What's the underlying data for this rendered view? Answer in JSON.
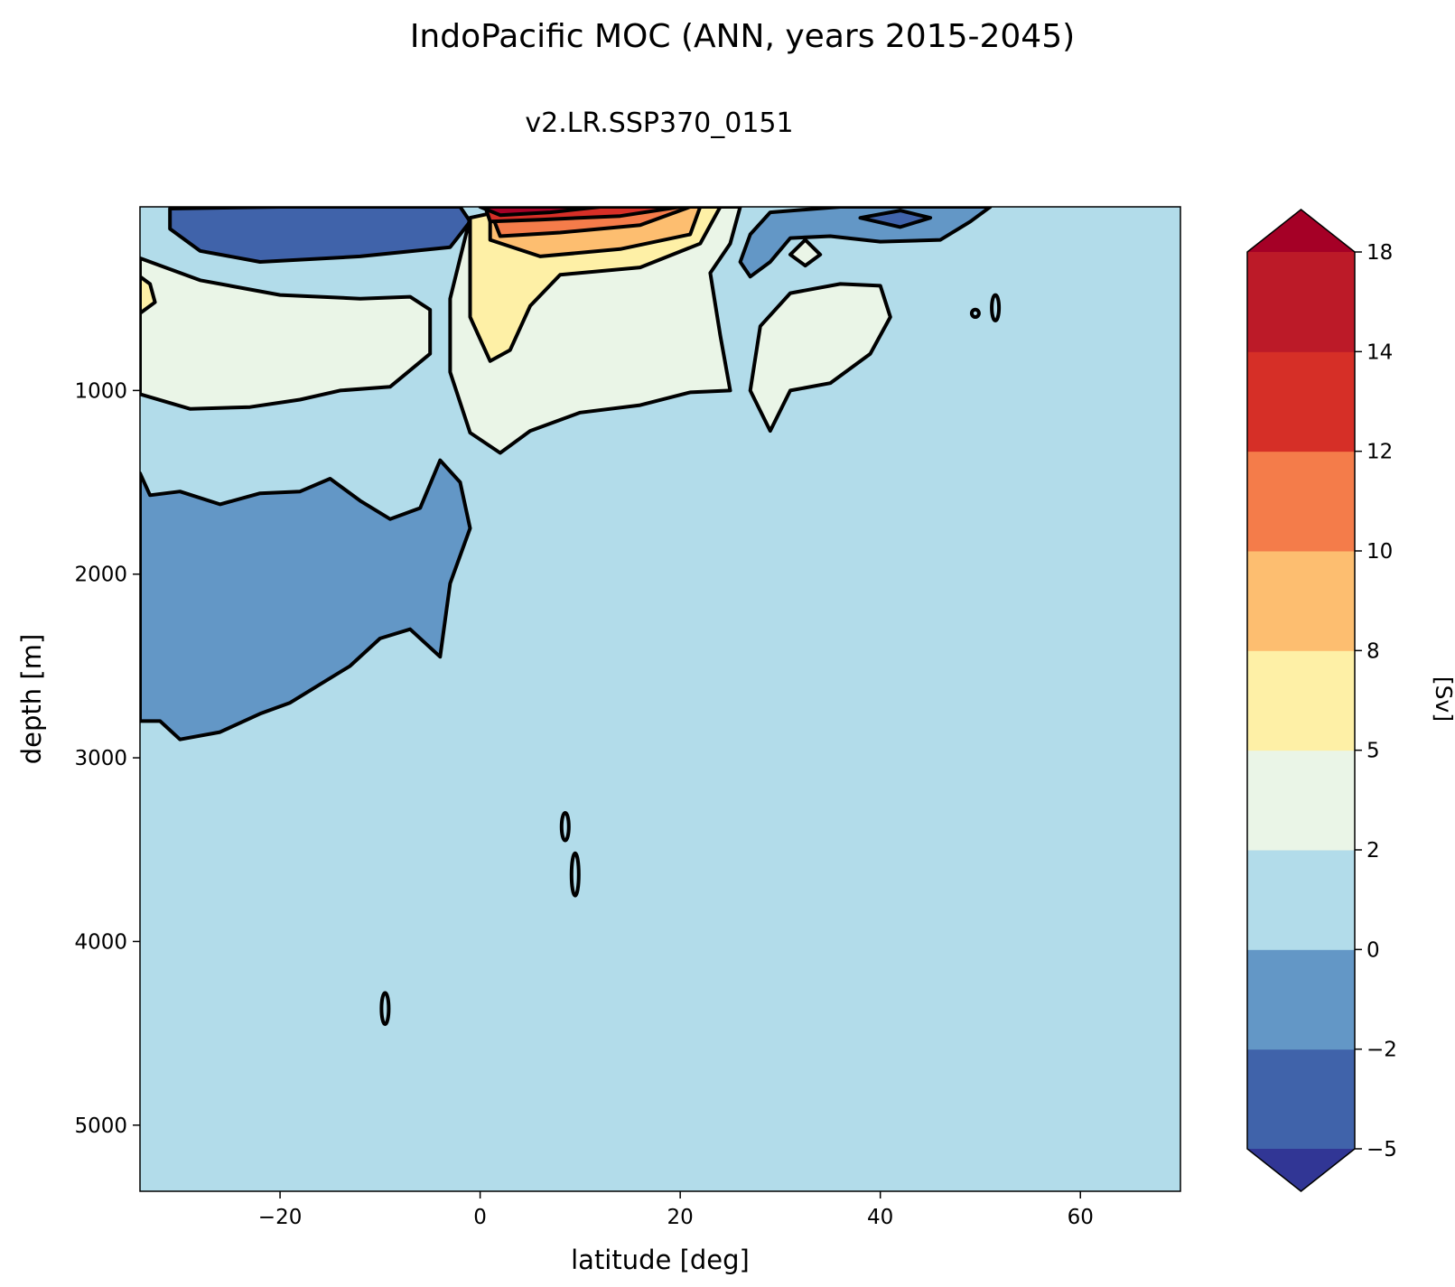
{
  "chart_data": {
    "type": "heatmap",
    "subtype": "filled-contour",
    "title": "IndoPacific MOC (ANN, years 2015-2045)",
    "subtitle": "v2.LR.SSP370_0151",
    "xlabel": "latitude [deg]",
    "ylabel": "depth [m]",
    "xlim": [
      -34,
      70
    ],
    "ylim": [
      5360,
      0
    ],
    "y_inverted": true,
    "grid": false,
    "x_ticks": [
      {
        "value": -20,
        "label": "−20"
      },
      {
        "value": 0,
        "label": "0"
      },
      {
        "value": 20,
        "label": "20"
      },
      {
        "value": 40,
        "label": "40"
      },
      {
        "value": 60,
        "label": "60"
      }
    ],
    "y_ticks": [
      {
        "value": 1000,
        "label": "1000"
      },
      {
        "value": 2000,
        "label": "2000"
      },
      {
        "value": 3000,
        "label": "3000"
      },
      {
        "value": 4000,
        "label": "4000"
      },
      {
        "value": 5000,
        "label": "5000"
      }
    ],
    "colorbar": {
      "label": "[Sv]",
      "placement": "right",
      "extend": "both",
      "levels": [
        -5,
        -2,
        0,
        2,
        5,
        8,
        10,
        12,
        14,
        18
      ],
      "tick_labels": [
        "−5",
        "−2",
        "0",
        "2",
        "5",
        "8",
        "10",
        "12",
        "14",
        "18"
      ],
      "colors": [
        "#4063aa",
        "#6397c6",
        "#b2dcea",
        "#eaf5e7",
        "#fef0a6",
        "#fdbe70",
        "#f47c4a",
        "#d62f27",
        "#bc1a28"
      ],
      "under_color": "#313695",
      "over_color": "#a50026"
    },
    "background_level_color": "#b2dcea",
    "regions": [
      {
        "name": "deep-negative-cell",
        "level_range": [
          -2,
          0
        ],
        "color": "#6397c6",
        "lat": [
          -34,
          0
        ],
        "depth": [
          1300,
          2900
        ],
        "outline": [
          [
            -34,
            1450
          ],
          [
            -33,
            1570
          ],
          [
            -30,
            1550
          ],
          [
            -26,
            1620
          ],
          [
            -22,
            1560
          ],
          [
            -18,
            1550
          ],
          [
            -15,
            1480
          ],
          [
            -12,
            1600
          ],
          [
            -9,
            1700
          ],
          [
            -6,
            1640
          ],
          [
            -4,
            1380
          ],
          [
            -2,
            1500
          ],
          [
            -1,
            1750
          ],
          [
            -3,
            2050
          ],
          [
            -4,
            2450
          ],
          [
            -7,
            2300
          ],
          [
            -10,
            2350
          ],
          [
            -13,
            2500
          ],
          [
            -16,
            2600
          ],
          [
            -19,
            2700
          ],
          [
            -22,
            2760
          ],
          [
            -26,
            2860
          ],
          [
            -30,
            2900
          ],
          [
            -32,
            2800
          ],
          [
            -34,
            2800
          ]
        ]
      },
      {
        "name": "southern-positive-cell",
        "level_range": [
          2,
          5
        ],
        "color": "#eaf5e7",
        "lat": [
          -34,
          -4
        ],
        "depth": [
          280,
          1120
        ],
        "outline": [
          [
            -34,
            280
          ],
          [
            -28,
            400
          ],
          [
            -20,
            480
          ],
          [
            -12,
            500
          ],
          [
            -7,
            490
          ],
          [
            -5,
            560
          ],
          [
            -5,
            800
          ],
          [
            -9,
            980
          ],
          [
            -14,
            1000
          ],
          [
            -18,
            1050
          ],
          [
            -23,
            1090
          ],
          [
            -29,
            1100
          ],
          [
            -34,
            1020
          ]
        ]
      },
      {
        "name": "southern-positive-core",
        "level_range": [
          5,
          8
        ],
        "color": "#fef0a6",
        "lat": [
          -34,
          -32
        ],
        "depth": [
          380,
          580
        ],
        "outline": [
          [
            -34,
            380
          ],
          [
            -33,
            420
          ],
          [
            -32.5,
            520
          ],
          [
            -34,
            580
          ]
        ]
      },
      {
        "name": "surface-negative-core",
        "level_range": [
          "<-5"
        ],
        "color": "#313695",
        "lat": [
          -28,
          -2
        ],
        "depth": [
          0,
          220
        ],
        "outline": [
          [
            -27,
            40
          ],
          [
            -20,
            20
          ],
          [
            -12,
            20
          ],
          [
            -4,
            20
          ],
          [
            -2,
            60
          ],
          [
            -4,
            150
          ],
          [
            -10,
            200
          ],
          [
            -18,
            220
          ],
          [
            -24,
            180
          ],
          [
            -28,
            100
          ]
        ]
      },
      {
        "name": "surface-negative-ring",
        "level_range": [
          -5,
          -2
        ],
        "color": "#4063aa",
        "lat": [
          -31,
          -1
        ],
        "depth": [
          0,
          300
        ],
        "outline": [
          [
            -31,
            10
          ],
          [
            -20,
            0
          ],
          [
            -2,
            0
          ],
          [
            -1,
            80
          ],
          [
            -3,
            220
          ],
          [
            -12,
            270
          ],
          [
            -22,
            300
          ],
          [
            -28,
            240
          ],
          [
            -31,
            120
          ]
        ]
      },
      {
        "name": "northern-positive-cell",
        "level_range": [
          2,
          5
        ],
        "color": "#eaf5e7",
        "lat": [
          -3,
          27
        ],
        "depth": [
          0,
          1340
        ],
        "outline": [
          [
            -1,
            60
          ],
          [
            5,
            0
          ],
          [
            26,
            0
          ],
          [
            25,
            200
          ],
          [
            23,
            360
          ],
          [
            24,
            700
          ],
          [
            25,
            1000
          ],
          [
            21,
            1010
          ],
          [
            16,
            1080
          ],
          [
            10,
            1120
          ],
          [
            5,
            1220
          ],
          [
            2,
            1340
          ],
          [
            -1,
            1230
          ],
          [
            -3,
            900
          ],
          [
            -3,
            500
          ]
        ]
      },
      {
        "name": "northern-positive-core",
        "level_range": [
          5,
          8
        ],
        "color": "#fef0a6",
        "lat": [
          -1,
          24
        ],
        "depth": [
          0,
          840
        ],
        "outline": [
          [
            -1,
            60
          ],
          [
            4,
            0
          ],
          [
            24,
            0
          ],
          [
            22,
            200
          ],
          [
            16,
            330
          ],
          [
            8,
            370
          ],
          [
            5,
            540
          ],
          [
            3,
            780
          ],
          [
            1,
            840
          ],
          [
            -1,
            600
          ]
        ]
      },
      {
        "name": "northern-positive-core-2",
        "level_range": [
          8,
          10
        ],
        "color": "#fdbe70",
        "lat": [
          1,
          22
        ],
        "depth": [
          0,
          270
        ],
        "outline": [
          [
            1,
            40
          ],
          [
            8,
            0
          ],
          [
            22,
            0
          ],
          [
            21,
            150
          ],
          [
            14,
            230
          ],
          [
            6,
            270
          ],
          [
            1,
            180
          ]
        ]
      },
      {
        "name": "northern-positive-core-3",
        "level_range": [
          10,
          14
        ],
        "color": "#f47c4a",
        "lat": [
          1,
          21
        ],
        "depth": [
          0,
          160
        ],
        "outline": [
          [
            1,
            20
          ],
          [
            10,
            0
          ],
          [
            21,
            0
          ],
          [
            16,
            100
          ],
          [
            8,
            140
          ],
          [
            2,
            160
          ]
        ]
      },
      {
        "name": "northern-positive-core-4",
        "level_range": [
          14,
          18
        ],
        "color": "#d62f27",
        "lat": [
          0.5,
          20
        ],
        "depth": [
          0,
          80
        ],
        "outline": [
          [
            0.5,
            0
          ],
          [
            20,
            0
          ],
          [
            14,
            50
          ],
          [
            6,
            70
          ],
          [
            1,
            80
          ]
        ]
      },
      {
        "name": "northern-positive-peak",
        "level_range": [
          ">18"
        ],
        "color": "#a50026",
        "lat": [
          0,
          12
        ],
        "depth": [
          0,
          45
        ],
        "outline": [
          [
            0,
            0
          ],
          [
            12,
            0
          ],
          [
            7,
            30
          ],
          [
            2,
            45
          ]
        ]
      },
      {
        "name": "subpolar-negative-cell",
        "level_range": [
          -2,
          0
        ],
        "color": "#6397c6",
        "lat": [
          27,
          51
        ],
        "depth": [
          0,
          380
        ],
        "outline": [
          [
            29,
            30
          ],
          [
            36,
            0
          ],
          [
            51,
            0
          ],
          [
            49,
            80
          ],
          [
            46,
            180
          ],
          [
            40,
            190
          ],
          [
            35,
            160
          ],
          [
            31,
            170
          ],
          [
            29,
            300
          ],
          [
            27,
            380
          ],
          [
            26,
            300
          ],
          [
            27,
            150
          ]
        ]
      },
      {
        "name": "subpolar-negative-core",
        "level_range": [
          -5,
          -2
        ],
        "color": "#4063aa",
        "lat": [
          38,
          45
        ],
        "depth": [
          20,
          110
        ],
        "outline": [
          [
            38,
            60
          ],
          [
            42,
            20
          ],
          [
            45,
            60
          ],
          [
            42,
            110
          ]
        ]
      },
      {
        "name": "northern-positive-cell-2",
        "level_range": [
          2,
          5
        ],
        "color": "#eaf5e7",
        "lat": [
          27,
          41
        ],
        "depth": [
          400,
          1220
        ],
        "outline": [
          [
            28,
            650
          ],
          [
            31,
            470
          ],
          [
            36,
            420
          ],
          [
            40,
            430
          ],
          [
            41,
            600
          ],
          [
            39,
            800
          ],
          [
            35,
            960
          ],
          [
            31,
            1000
          ],
          [
            29,
            1220
          ],
          [
            27,
            1000
          ]
        ]
      },
      {
        "name": "northern-positive-islet",
        "level_range": [
          2,
          5
        ],
        "color": "#eaf5e7",
        "lat": [
          31,
          34
        ],
        "depth": [
          180,
          320
        ],
        "outline": [
          [
            31,
            260
          ],
          [
            32.5,
            180
          ],
          [
            34,
            260
          ],
          [
            32.5,
            320
          ]
        ]
      }
    ],
    "contour_islands": [
      {
        "lat": 8.5,
        "depth": [
          3300,
          3450
        ]
      },
      {
        "lat": 9.5,
        "depth": [
          3520,
          3750
        ]
      },
      {
        "lat": -9.5,
        "depth": [
          4280,
          4450
        ]
      },
      {
        "lat": 51.5,
        "depth": [
          480,
          620
        ]
      },
      {
        "lat": 49.5,
        "depth": [
          560,
          600
        ]
      }
    ]
  }
}
